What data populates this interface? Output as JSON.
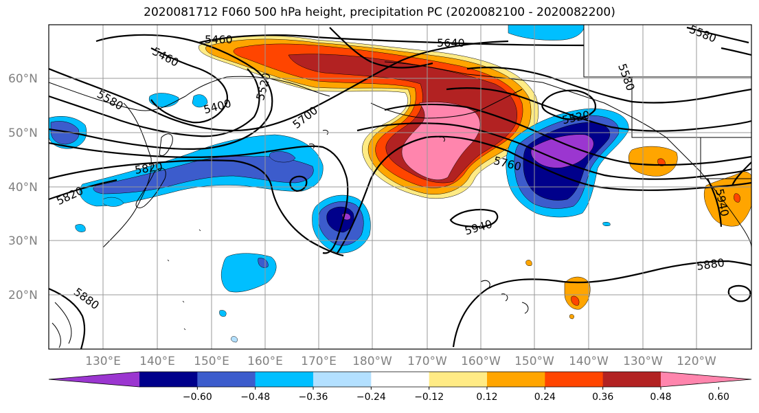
{
  "title": "2020081712 F060 500 hPa height, precipitation PC (2020082100 - 2020082200)",
  "map": {
    "lat_labels": [
      "20°N",
      "30°N",
      "40°N",
      "50°N",
      "60°N"
    ],
    "lon_labels": [
      "130°E",
      "140°E",
      "150°E",
      "160°E",
      "170°E",
      "180°W",
      "170°W",
      "160°W",
      "150°W",
      "140°W",
      "130°W",
      "120°W"
    ],
    "contour_labels": [
      "5460",
      "5460",
      "5400",
      "5520",
      "5580",
      "5700",
      "5820",
      "5820",
      "5640",
      "5580",
      "5580",
      "5520",
      "5760",
      "5940",
      "5940",
      "5880",
      "5880"
    ]
  },
  "colorbar": {
    "colors": [
      "#9b36d0",
      "#00008b",
      "#3c5ccc",
      "#00bfff",
      "#b3e0ff",
      "#ffffff",
      "#ffeb85",
      "#ffa500",
      "#ff4500",
      "#b22222",
      "#ff85ad"
    ],
    "tick_labels": [
      "−0.60",
      "−0.48",
      "−0.36",
      "−0.24",
      "−0.12",
      "0.12",
      "0.24",
      "0.36",
      "0.48",
      "0.60"
    ]
  }
}
